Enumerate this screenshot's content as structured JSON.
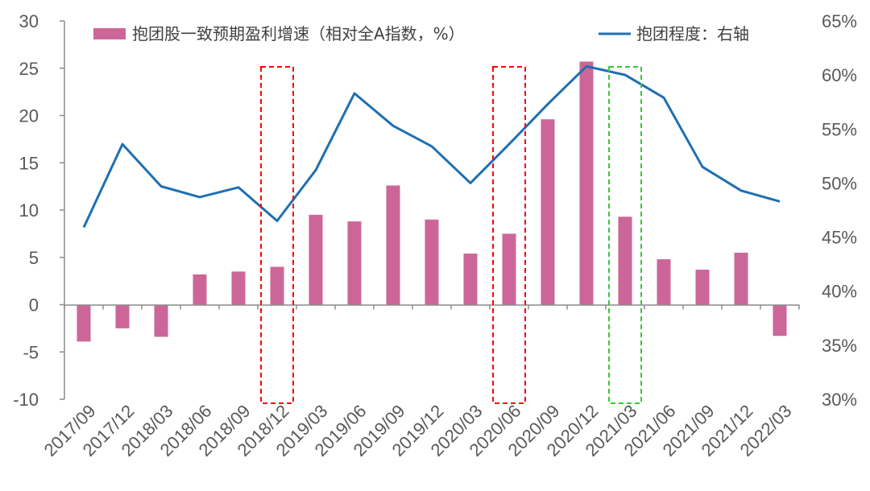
{
  "chart_data": {
    "type": "bar+line",
    "categories": [
      "2017/09",
      "2017/12",
      "2018/03",
      "2018/06",
      "2018/09",
      "2018/12",
      "2019/03",
      "2019/06",
      "2019/09",
      "2019/12",
      "2020/03",
      "2020/06",
      "2020/09",
      "2020/12",
      "2021/03",
      "2021/06",
      "2021/09",
      "2021/12",
      "2022/03"
    ],
    "series": [
      {
        "name": "抱团股一致预期盈利增速（相对全A指数，%）",
        "type": "bar",
        "axis": "left",
        "color": "#CC6699",
        "values": [
          -3.9,
          -2.5,
          -3.4,
          3.2,
          3.5,
          4.0,
          9.5,
          8.8,
          12.6,
          9.0,
          5.4,
          7.5,
          19.6,
          25.7,
          9.3,
          4.8,
          3.7,
          5.5,
          -3.3
        ]
      },
      {
        "name": "抱团程度：右轴",
        "type": "line",
        "axis": "right",
        "color": "#1F6FB2",
        "values": [
          45.9,
          53.6,
          49.7,
          48.7,
          49.6,
          46.5,
          51.2,
          58.3,
          55.3,
          53.4,
          50.0,
          53.6,
          57.3,
          60.8,
          60.0,
          57.9,
          51.5,
          49.3,
          48.3
        ]
      }
    ],
    "y_left": {
      "ylim": [
        -10,
        30
      ],
      "ticks": [
        -10,
        -5,
        0,
        5,
        10,
        15,
        20,
        25,
        30
      ],
      "tick_labels": [
        "-10",
        "-5",
        "0",
        "5",
        "10",
        "15",
        "20",
        "25",
        "30"
      ]
    },
    "y_right": {
      "ylim": [
        30,
        65
      ],
      "ticks": [
        30,
        35,
        40,
        45,
        50,
        55,
        60,
        65
      ],
      "tick_labels": [
        "30%",
        "35%",
        "40%",
        "45%",
        "50%",
        "55%",
        "60%",
        "65%"
      ]
    },
    "highlight_boxes": [
      {
        "category": "2018/12",
        "color": "#FF0000",
        "style": "dashed"
      },
      {
        "category": "2020/06",
        "color": "#FF0000",
        "style": "dashed"
      },
      {
        "category": "2021/03",
        "color": "#33CC33",
        "style": "dashed"
      }
    ],
    "legend_position": "top",
    "grid": false
  }
}
